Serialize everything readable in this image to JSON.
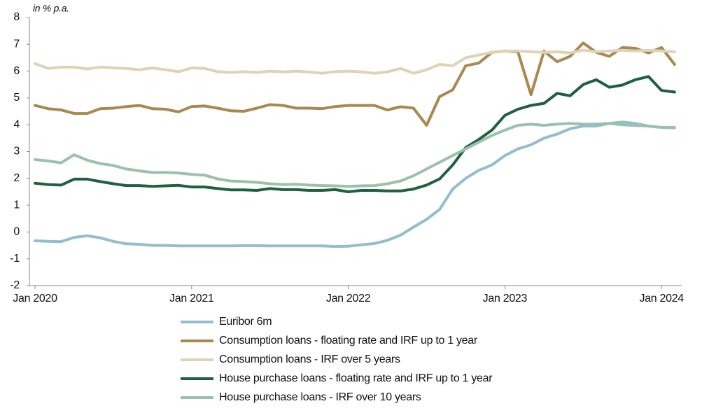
{
  "chart_data": {
    "type": "line",
    "title": "in % p.a.",
    "categories": [
      "Jan 2020",
      null,
      null,
      null,
      null,
      null,
      null,
      null,
      null,
      null,
      null,
      null,
      "Jan 2021",
      null,
      null,
      null,
      null,
      null,
      null,
      null,
      null,
      null,
      null,
      null,
      "Jan 2022",
      null,
      null,
      null,
      null,
      null,
      null,
      null,
      null,
      null,
      null,
      null,
      "Jan 2023",
      null,
      null,
      null,
      null,
      null,
      null,
      null,
      null,
      null,
      null,
      null,
      "Jan 2024",
      null
    ],
    "ylim": [
      -2,
      8
    ],
    "yticks": [
      -2,
      -1,
      0,
      1,
      2,
      3,
      4,
      5,
      6,
      7,
      8
    ],
    "grid": false,
    "series": [
      {
        "name": "Euribor 6m",
        "color": "#94bdcf",
        "values": [
          -0.33,
          -0.35,
          -0.36,
          -0.2,
          -0.14,
          -0.22,
          -0.35,
          -0.44,
          -0.46,
          -0.5,
          -0.5,
          -0.52,
          -0.52,
          -0.52,
          -0.52,
          -0.52,
          -0.51,
          -0.51,
          -0.52,
          -0.52,
          -0.52,
          -0.52,
          -0.52,
          -0.54,
          -0.53,
          -0.48,
          -0.43,
          -0.31,
          -0.12,
          0.18,
          0.47,
          0.84,
          1.6,
          2.0,
          2.3,
          2.5,
          2.85,
          3.1,
          3.25,
          3.5,
          3.65,
          3.85,
          3.95,
          3.95,
          4.05,
          4.1,
          4.05,
          3.95,
          3.9,
          3.9
        ]
      },
      {
        "name": "Consumption loans - floating rate and IRF up to 1 year",
        "color": "#a8894f",
        "values": [
          4.72,
          4.6,
          4.55,
          4.42,
          4.42,
          4.6,
          4.62,
          4.68,
          4.72,
          4.6,
          4.58,
          4.48,
          4.68,
          4.7,
          4.62,
          4.52,
          4.5,
          4.62,
          4.75,
          4.72,
          4.62,
          4.62,
          4.6,
          4.68,
          4.72,
          4.72,
          4.72,
          4.55,
          4.67,
          4.62,
          3.98,
          5.05,
          5.3,
          6.2,
          6.3,
          6.7,
          6.75,
          6.72,
          5.12,
          6.75,
          6.35,
          6.55,
          7.05,
          6.7,
          6.55,
          6.88,
          6.85,
          6.68,
          6.88,
          6.25
        ]
      },
      {
        "name": "Consumption loans - IRF over 5 years",
        "color": "#ddd3b6",
        "values": [
          6.28,
          6.1,
          6.15,
          6.15,
          6.08,
          6.15,
          6.12,
          6.1,
          6.05,
          6.12,
          6.05,
          5.98,
          6.12,
          6.1,
          5.98,
          5.95,
          5.98,
          5.95,
          6.0,
          5.97,
          6.0,
          5.97,
          5.92,
          5.98,
          6.0,
          5.97,
          5.92,
          5.97,
          6.1,
          5.92,
          6.05,
          6.25,
          6.2,
          6.5,
          6.6,
          6.7,
          6.75,
          6.75,
          6.72,
          6.7,
          6.72,
          6.68,
          6.78,
          6.72,
          6.75,
          6.78,
          6.75,
          6.78,
          6.75,
          6.72
        ]
      },
      {
        "name": "House purchase loans - floating rate and IRF up to 1 year",
        "color": "#1f6045",
        "values": [
          1.82,
          1.77,
          1.75,
          1.97,
          1.97,
          1.88,
          1.8,
          1.73,
          1.73,
          1.7,
          1.72,
          1.74,
          1.68,
          1.68,
          1.62,
          1.57,
          1.57,
          1.55,
          1.62,
          1.58,
          1.58,
          1.55,
          1.55,
          1.58,
          1.5,
          1.55,
          1.55,
          1.53,
          1.53,
          1.6,
          1.75,
          1.98,
          2.5,
          3.15,
          3.45,
          3.8,
          4.35,
          4.58,
          4.72,
          4.8,
          5.17,
          5.08,
          5.5,
          5.68,
          5.4,
          5.48,
          5.68,
          5.8,
          5.28,
          5.22
        ]
      },
      {
        "name": "House purchase loans - IRF over 10 years",
        "color": "#9bc1aa",
        "values": [
          2.7,
          2.65,
          2.58,
          2.88,
          2.68,
          2.55,
          2.48,
          2.35,
          2.28,
          2.22,
          2.22,
          2.2,
          2.15,
          2.12,
          1.98,
          1.9,
          1.88,
          1.85,
          1.8,
          1.77,
          1.78,
          1.75,
          1.73,
          1.72,
          1.7,
          1.72,
          1.73,
          1.8,
          1.9,
          2.1,
          2.35,
          2.6,
          2.85,
          3.1,
          3.35,
          3.6,
          3.8,
          3.98,
          4.02,
          3.98,
          4.02,
          4.05,
          4.02,
          4.02,
          4.05,
          4.0,
          3.97,
          3.95,
          3.9,
          3.88
        ]
      }
    ]
  }
}
